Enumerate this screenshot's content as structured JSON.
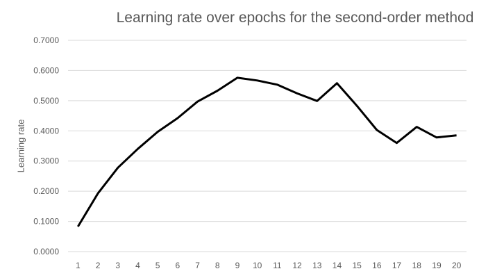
{
  "chart_data": {
    "type": "line",
    "title": "Learning rate over epochs for the second-order method",
    "xlabel": "",
    "ylabel": "Learning rate",
    "categories": [
      "1",
      "2",
      "3",
      "4",
      "5",
      "6",
      "7",
      "8",
      "9",
      "10",
      "11",
      "12",
      "13",
      "14",
      "15",
      "16",
      "17",
      "18",
      "19",
      "20"
    ],
    "series": [
      {
        "values": [
          0.083,
          0.193,
          0.278,
          0.34,
          0.397,
          0.442,
          0.497,
          0.533,
          0.576,
          0.567,
          0.553,
          0.524,
          0.499,
          0.558,
          0.483,
          0.403,
          0.36,
          0.413,
          0.378,
          0.385
        ],
        "color": "#000000"
      }
    ],
    "ylim": [
      0,
      0.7
    ],
    "yticks": [
      "0.0000",
      "0.1000",
      "0.2000",
      "0.3000",
      "0.4000",
      "0.5000",
      "0.6000",
      "0.7000"
    ],
    "grid": true,
    "legend": "none"
  }
}
